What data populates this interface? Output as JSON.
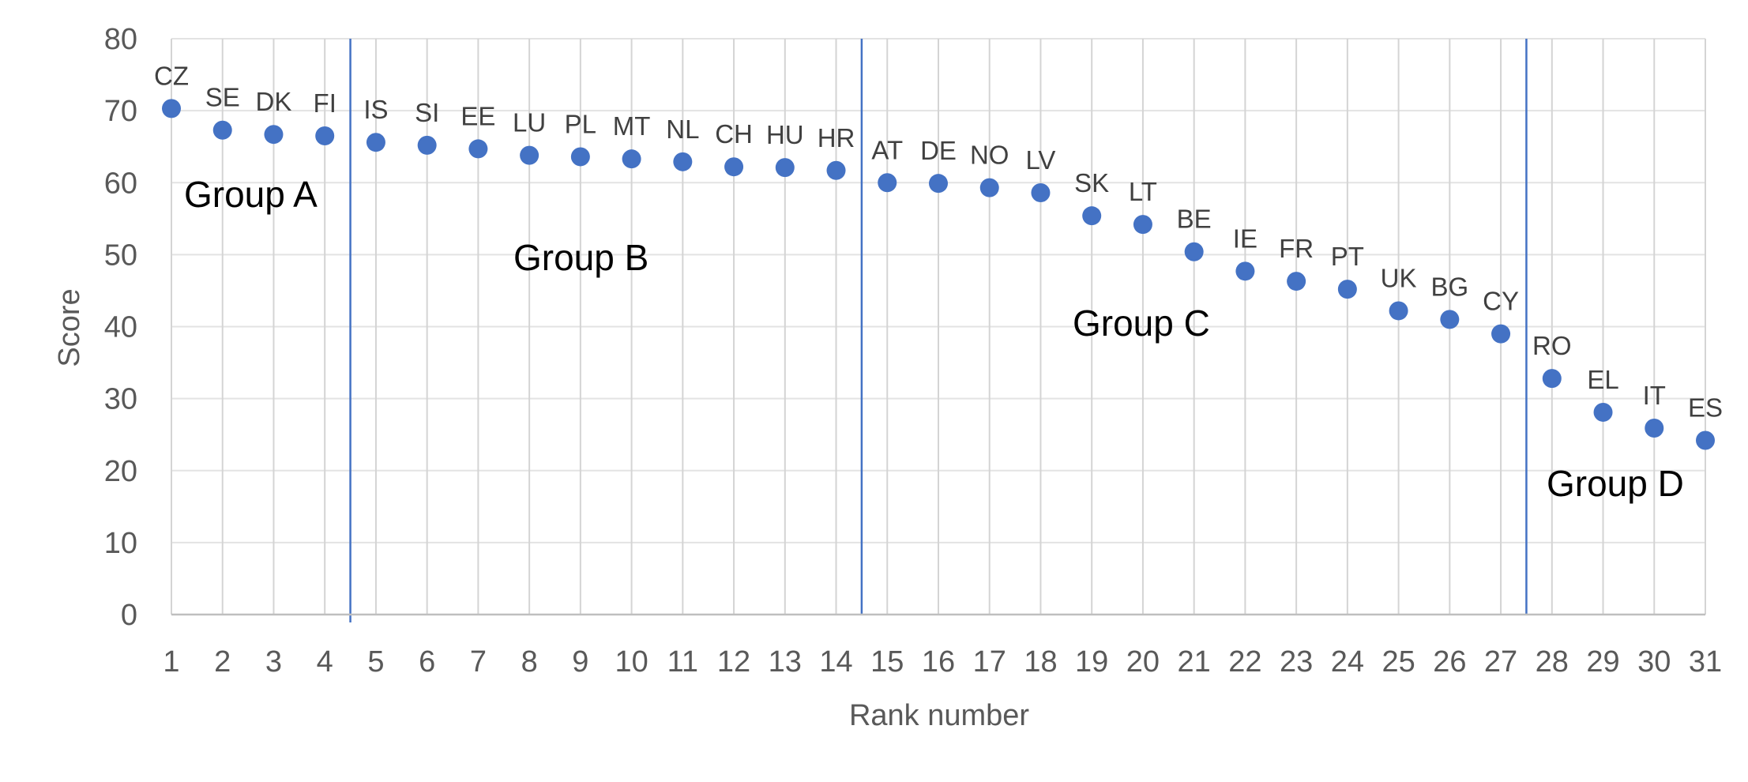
{
  "chart_data": {
    "type": "scatter",
    "xlabel": "Rank number",
    "ylabel": "Score",
    "xlim": [
      1,
      31
    ],
    "ylim": [
      0,
      80
    ],
    "y_ticks": [
      "0",
      "10",
      "20",
      "30",
      "40",
      "50",
      "60",
      "70",
      "80"
    ],
    "x_ticks": [
      "1",
      "2",
      "3",
      "4",
      "5",
      "6",
      "7",
      "8",
      "9",
      "10",
      "11",
      "12",
      "13",
      "14",
      "15",
      "16",
      "17",
      "18",
      "19",
      "20",
      "21",
      "22",
      "23",
      "24",
      "25",
      "26",
      "27",
      "28",
      "29",
      "30",
      "31"
    ],
    "grid": "vertical and horizontal",
    "marker_color": "#4472C4",
    "points": [
      {
        "x": 1,
        "y": 70.3,
        "label": "CZ"
      },
      {
        "x": 2,
        "y": 67.3,
        "label": "SE"
      },
      {
        "x": 3,
        "y": 66.7,
        "label": "DK"
      },
      {
        "x": 4,
        "y": 66.5,
        "label": "FI"
      },
      {
        "x": 5,
        "y": 65.6,
        "label": "IS"
      },
      {
        "x": 6,
        "y": 65.2,
        "label": "SI"
      },
      {
        "x": 7,
        "y": 64.7,
        "label": "EE"
      },
      {
        "x": 8,
        "y": 63.8,
        "label": "LU"
      },
      {
        "x": 9,
        "y": 63.6,
        "label": "PL"
      },
      {
        "x": 10,
        "y": 63.3,
        "label": "MT"
      },
      {
        "x": 11,
        "y": 62.9,
        "label": "NL"
      },
      {
        "x": 12,
        "y": 62.2,
        "label": "CH"
      },
      {
        "x": 13,
        "y": 62.1,
        "label": "HU"
      },
      {
        "x": 14,
        "y": 61.7,
        "label": "HR"
      },
      {
        "x": 15,
        "y": 60.0,
        "label": "AT"
      },
      {
        "x": 16,
        "y": 59.9,
        "label": "DE"
      },
      {
        "x": 17,
        "y": 59.3,
        "label": "NO"
      },
      {
        "x": 18,
        "y": 58.6,
        "label": "LV"
      },
      {
        "x": 19,
        "y": 55.4,
        "label": "SK"
      },
      {
        "x": 20,
        "y": 54.2,
        "label": "LT"
      },
      {
        "x": 21,
        "y": 50.4,
        "label": "BE"
      },
      {
        "x": 22,
        "y": 47.7,
        "label": "IE"
      },
      {
        "x": 23,
        "y": 46.3,
        "label": "FR"
      },
      {
        "x": 24,
        "y": 45.2,
        "label": "PT"
      },
      {
        "x": 25,
        "y": 42.2,
        "label": "UK"
      },
      {
        "x": 26,
        "y": 41.0,
        "label": "BG"
      },
      {
        "x": 27,
        "y": 39.0,
        "label": "CY"
      },
      {
        "x": 28,
        "y": 32.8,
        "label": "RO"
      },
      {
        "x": 29,
        "y": 28.1,
        "label": "EL"
      },
      {
        "x": 30,
        "y": 25.9,
        "label": "IT"
      },
      {
        "x": 31,
        "y": 24.2,
        "label": "ES"
      }
    ],
    "group_dividers": [
      4.5,
      14.5,
      27.5
    ],
    "divider_color": "#4472C4",
    "groups": [
      {
        "label": "Group A"
      },
      {
        "label": "Group B"
      },
      {
        "label": "Group C"
      },
      {
        "label": "Group D"
      }
    ]
  }
}
